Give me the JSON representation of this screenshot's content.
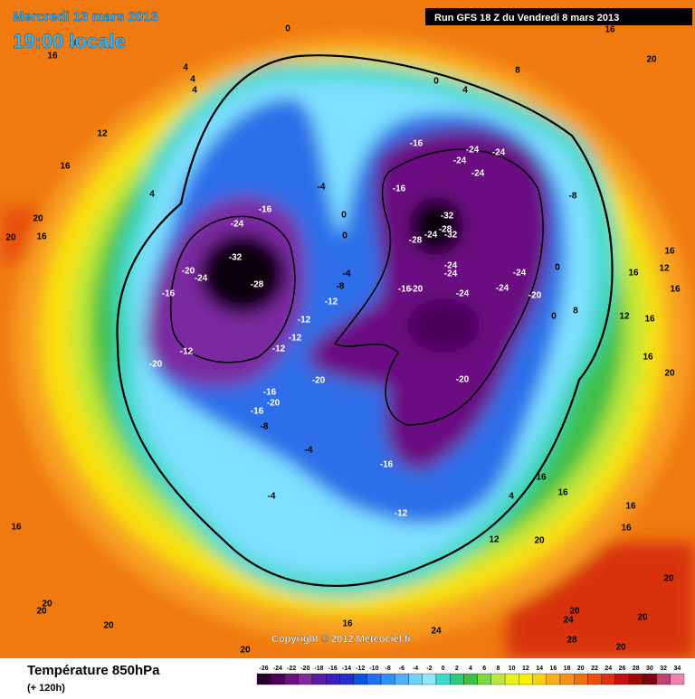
{
  "header": {
    "date": "Mercredi 13 mars 2013",
    "time": "19:00 locale",
    "run": "Run GFS 18 Z du Vendredi 8 mars 2013"
  },
  "copyright": "Copyright © 2012 Meteociel.fr",
  "footer": {
    "title": "Température 850hPa",
    "lead": "(+ 120h)"
  },
  "colorbar": {
    "ticks": [
      -26,
      -24,
      -22,
      -20,
      -18,
      -16,
      -14,
      -12,
      -10,
      -8,
      -6,
      -4,
      -2,
      0,
      2,
      4,
      6,
      8,
      10,
      12,
      14,
      16,
      18,
      20,
      22,
      24,
      26,
      28,
      30,
      32,
      34
    ],
    "colors": [
      "#2a0030",
      "#4a0058",
      "#6a1080",
      "#7e2a98",
      "#5a1ca8",
      "#3a20b8",
      "#2030c8",
      "#1050e0",
      "#2070f0",
      "#3090f8",
      "#50b0ff",
      "#70d0ff",
      "#90e8ff",
      "#40d8c8",
      "#30c880",
      "#40c040",
      "#80d840",
      "#b8e840",
      "#e8f020",
      "#f8f000",
      "#f8d010",
      "#f8b020",
      "#f89018",
      "#f07010",
      "#e85010",
      "#e03010",
      "#c81010",
      "#a00808",
      "#780810",
      "#c04070",
      "#f080b0"
    ]
  },
  "contour_labels": [
    0,
    16,
    16,
    16,
    20,
    4,
    4,
    4,
    8,
    0,
    4,
    12,
    16,
    4,
    -16,
    -24,
    -24,
    -24,
    -24,
    -8,
    -4,
    -16,
    -16,
    -24,
    0,
    20,
    16,
    20,
    0,
    -32,
    -28,
    -24,
    -28,
    -32,
    -32,
    -28,
    -20,
    -24,
    -16,
    -4,
    -8,
    -16,
    -20,
    -24,
    -24,
    -24,
    -24,
    -20,
    -24,
    -12,
    -12,
    -12,
    -12,
    -12,
    -20,
    -20,
    -20,
    -16,
    -20,
    -16,
    -8,
    -4,
    -16,
    -4,
    -12,
    4,
    16,
    16,
    16,
    16,
    16,
    12,
    20,
    20,
    20,
    20,
    16,
    20,
    20,
    24,
    28,
    20,
    20,
    24,
    0,
    0,
    8,
    16,
    12,
    16,
    16,
    16,
    12,
    20,
    16,
    20
  ]
}
